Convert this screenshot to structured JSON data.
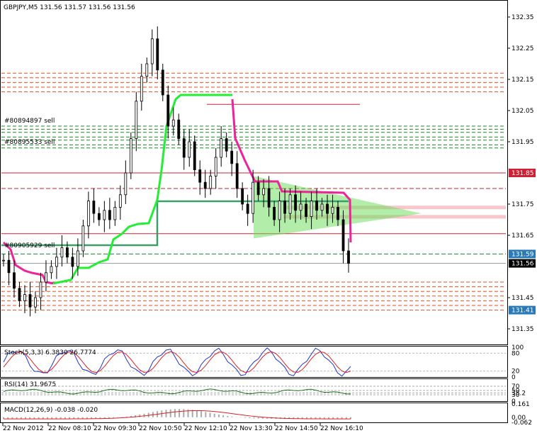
{
  "header": {
    "title": "GBPJPY,M5  131.56 131.57 131.56 131.56"
  },
  "chart_data": {
    "type": "candlestick",
    "symbol": "GBPJPY",
    "timeframe": "M5",
    "ohlc_last": [
      131.56,
      131.57,
      131.56,
      131.56
    ],
    "price_axis": {
      "ticks": [
        "132.35",
        "132.25",
        "132.15",
        "132.05",
        "131.95",
        "131.85",
        "131.75",
        "131.65",
        "131.59",
        "131.56",
        "131.45",
        "131.41",
        "131.35"
      ],
      "ylim": [
        131.31,
        132.39
      ]
    },
    "time_axis": {
      "ticks": [
        "22 Nov 2012",
        "22 Nov 08:10",
        "22 Nov 09:30",
        "22 Nov 10:50",
        "22 Nov 12:10",
        "22 Nov 13:30",
        "22 Nov 14:50",
        "22 Nov 16:10"
      ]
    },
    "price_tags": [
      {
        "value": "131.85",
        "color": "#cc2233"
      },
      {
        "value": "131.59",
        "color": "#2a7ab8"
      },
      {
        "value": "131.56",
        "color": "#000000"
      },
      {
        "value": "131.41",
        "color": "#2a7ab8"
      }
    ],
    "order_labels": [
      "#80894897 sell",
      "#80895533 sell",
      "#80905929 sell"
    ],
    "close_series": [
      131.57,
      131.53,
      131.48,
      131.44,
      131.46,
      131.42,
      131.45,
      131.5,
      131.53,
      131.55,
      131.58,
      131.61,
      131.58,
      131.55,
      131.6,
      131.68,
      131.76,
      131.72,
      131.7,
      131.73,
      131.7,
      131.74,
      131.78,
      131.85,
      131.96,
      132.08,
      132.16,
      132.2,
      132.28,
      132.18,
      132.1,
      132.0,
      132.02,
      131.96,
      131.9,
      131.95,
      131.86,
      131.82,
      131.8,
      131.84,
      131.9,
      131.96,
      131.92,
      131.88,
      131.8,
      131.75,
      131.72,
      131.82,
      131.78,
      131.8,
      131.74,
      131.7,
      131.76,
      131.72,
      131.78,
      131.73,
      131.75,
      131.71,
      131.76,
      131.73,
      131.75,
      131.72,
      131.74,
      131.7,
      131.6,
      131.56
    ],
    "indicators": [
      {
        "name": "Stoch(5,3,3) 6.3830 26.7774",
        "ticks": [
          "100",
          "80",
          "20",
          "0"
        ]
      },
      {
        "name": "RSI(14) 31.9675",
        "ticks": [
          "70",
          "50",
          "38.2",
          "30",
          "0"
        ]
      },
      {
        "name": "MACD(12,26,9) -0.038 -0.020",
        "ticks": [
          "0.161",
          "0.00",
          "-0.062"
        ]
      }
    ]
  }
}
